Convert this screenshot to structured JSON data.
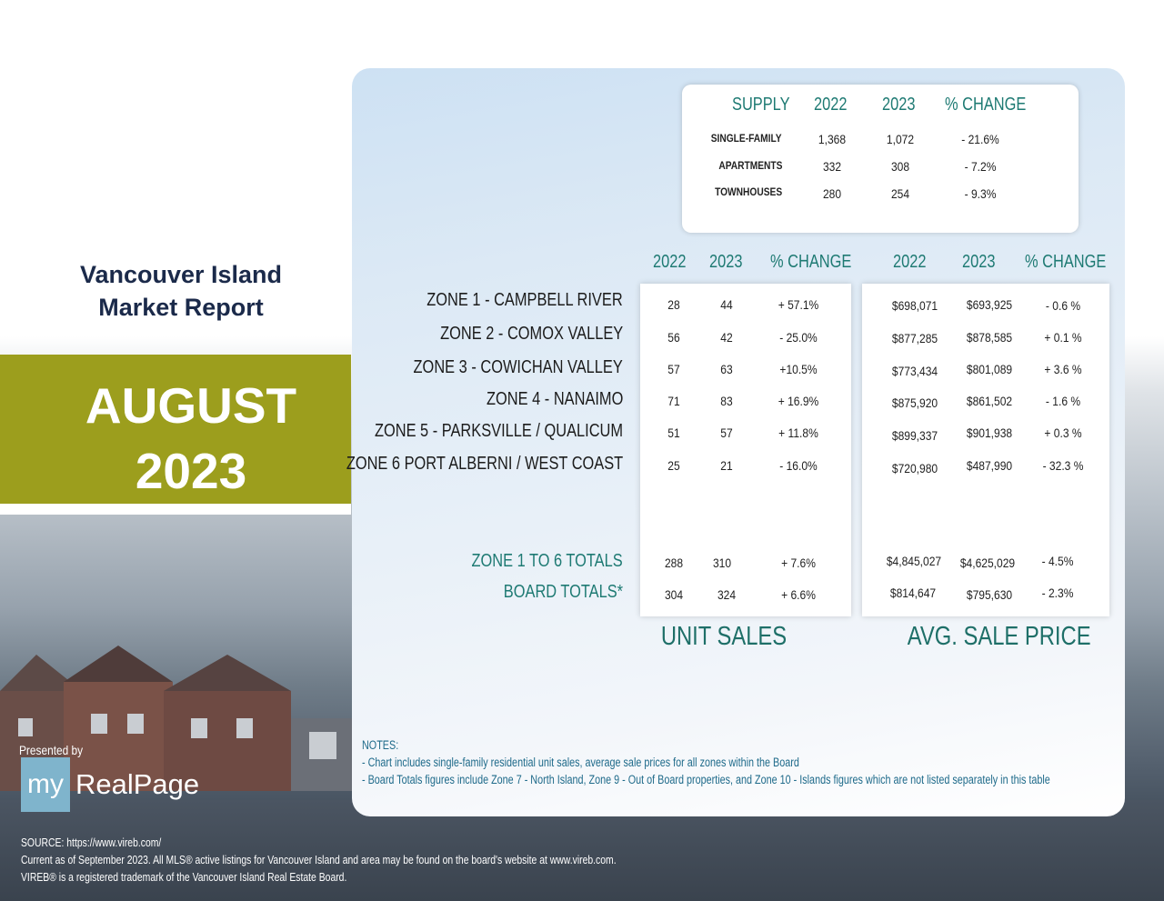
{
  "report": {
    "title_line1": "Vancouver Island",
    "title_line2": "Market Report",
    "month": "AUGUST",
    "year": "2023"
  },
  "supply": {
    "headers": [
      "SUPPLY",
      "2022",
      "2023",
      "% CHANGE"
    ],
    "rows": [
      {
        "label": "SINGLE-FAMILY",
        "y2022": "1,368",
        "y2023": "1,072",
        "change": "- 21.6%"
      },
      {
        "label": "APARTMENTS",
        "y2022": "332",
        "y2023": "308",
        "change": "- 7.2%"
      },
      {
        "label": "TOWNHOUSES",
        "y2022": "280",
        "y2023": "254",
        "change": "- 9.3%"
      }
    ]
  },
  "sales": {
    "unit_headers": [
      "2022",
      "2023",
      "% CHANGE"
    ],
    "price_headers": [
      "2022",
      "2023",
      "% CHANGE"
    ],
    "zones": [
      {
        "name": "ZONE 1 - CAMPBELL RIVER",
        "u2022": "28",
        "u2023": "44",
        "uchange": "+ 57.1%",
        "p2022": "$698,071",
        "p2023": "$693,925",
        "pchange": "- 0.6 %"
      },
      {
        "name": "ZONE 2  - COMOX VALLEY",
        "u2022": "56",
        "u2023": "42",
        "uchange": "- 25.0%",
        "p2022": "$877,285",
        "p2023": "$878,585",
        "pchange": "+ 0.1 %"
      },
      {
        "name": "ZONE 3 - COWICHAN VALLEY",
        "u2022": "57",
        "u2023": "63",
        "uchange": "+10.5%",
        "p2022": "$773,434",
        "p2023": "$801,089",
        "pchange": "+ 3.6 %"
      },
      {
        "name": "ZONE 4 - NANAIMO",
        "u2022": "71",
        "u2023": "83",
        "uchange": "+ 16.9%",
        "p2022": "$875,920",
        "p2023": "$861,502",
        "pchange": "- 1.6 %"
      },
      {
        "name": "ZONE 5 - PARKSVILLE / QUALICUM",
        "u2022": "51",
        "u2023": "57",
        "uchange": "+ 11.8%",
        "p2022": "$899,337",
        "p2023": "$901,938",
        "pchange": "+ 0.3 %"
      },
      {
        "name": "ZONE 6 PORT ALBERNI / WEST COAST",
        "u2022": "25",
        "u2023": "21",
        "uchange": "- 16.0%",
        "p2022": "$720,980",
        "p2023": "$487,990",
        "pchange": "- 32.3 %"
      }
    ],
    "totals": [
      {
        "name": "ZONE 1 TO 6 TOTALS",
        "u2022": "288",
        "u2023": "310",
        "uchange": "+ 7.6%",
        "p2022": "$4,845,027",
        "p2023": "$4,625,029",
        "pchange": "- 4.5%"
      },
      {
        "name": "BOARD TOTALS*",
        "u2022": "304",
        "u2023": "324",
        "uchange": "+ 6.6%",
        "p2022": "$814,647",
        "p2023": "$795,630",
        "pchange": "- 2.3%"
      }
    ],
    "unit_sales_title": "UNIT SALES",
    "avg_price_title": "AVG. SALE PRICE"
  },
  "notes": {
    "heading": "NOTES:",
    "line1": "- Chart includes single-family residential unit sales, average sale prices for all zones within the Board",
    "line2": "- Board Totals figures include Zone 7 - North Island, Zone 9 - Out of Board properties, and Zone 10 - Islands figures which are not listed separately in this table"
  },
  "branding": {
    "presented_by": "Presented by",
    "logo_my": "my",
    "logo_name": "RealPage"
  },
  "footer": {
    "source": "SOURCE: https://www.vireb.com/",
    "current": "Current as of September 2023. All MLS® active listings for Vancouver Island and area may be found on the board's website at www.vireb.com.",
    "trademark": "VIREB® is a registered trademark of the Vancouver Island Real Estate Board."
  },
  "colors": {
    "accent_olive": "#9c9e1d",
    "teal": "#1e7a73",
    "navy": "#1b2a4a"
  }
}
